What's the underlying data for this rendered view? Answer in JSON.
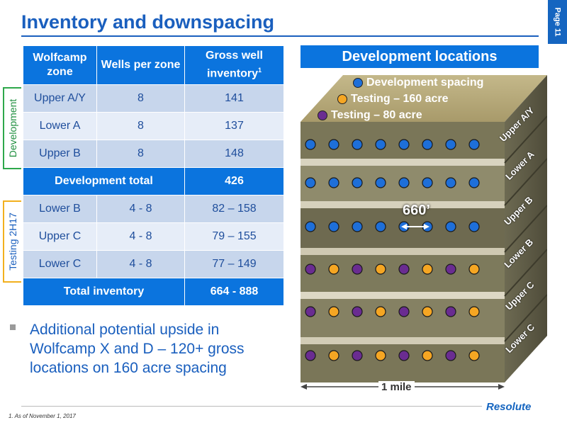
{
  "title": "Inventory and downspacing",
  "page_tab": "Page 11",
  "table": {
    "headers": [
      "Wolfcamp zone",
      "Wells per zone",
      "Gross well inventory"
    ],
    "header_sup": "1",
    "rows": [
      {
        "zone": "Upper A/Y",
        "wells": "8",
        "inventory": "141"
      },
      {
        "zone": "Lower A",
        "wells": "8",
        "inventory": "137"
      },
      {
        "zone": "Upper B",
        "wells": "8",
        "inventory": "148"
      },
      {
        "zone": "Lower B",
        "wells": "4 - 8",
        "inventory": "82 – 158"
      },
      {
        "zone": "Upper C",
        "wells": "4 - 8",
        "inventory": "79 – 155"
      },
      {
        "zone": "Lower C",
        "wells": "4 - 8",
        "inventory": "77 – 149"
      }
    ],
    "dev_total_label": "Development total",
    "dev_total_value": "426",
    "total_label": "Total inventory",
    "total_value": "664 - 888"
  },
  "side_labels": {
    "development": "Development",
    "testing": "Testing 2H17"
  },
  "bullet": "Additional potential upside in Wolfcamp X and D – 120+ gross locations on 160 acre spacing",
  "diagram": {
    "title": "Development locations",
    "legend": [
      {
        "label": "Development spacing",
        "color": "#1e6fd9"
      },
      {
        "label": "Testing – 160 acre",
        "color": "#f5a623"
      },
      {
        "label": "Testing – 80 acre",
        "color": "#6a2c91"
      }
    ],
    "zones": [
      "Upper A/Y",
      "Lower A",
      "Upper B",
      "Lower B",
      "Upper C",
      "Lower C"
    ],
    "spacing_label": "660’",
    "mile_label": "1 mile"
  },
  "footnote": "1.    As of November 1, 2017",
  "logo": "Resolute"
}
